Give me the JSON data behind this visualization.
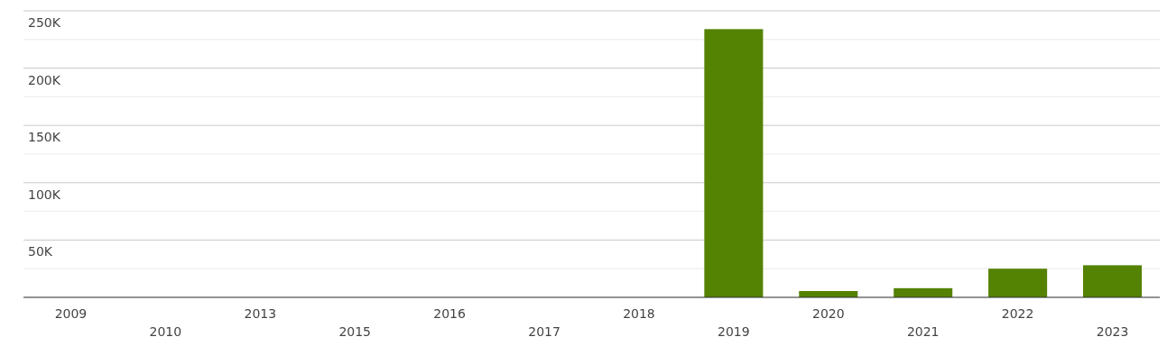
{
  "chart_data": {
    "type": "bar",
    "categories": [
      "2009",
      "2010",
      "2013",
      "2015",
      "2016",
      "2017",
      "2018",
      "2019",
      "2020",
      "2021",
      "2022",
      "2023"
    ],
    "values": [
      0,
      0,
      0,
      0,
      0,
      0,
      0,
      234000,
      5500,
      8000,
      25000,
      28000
    ],
    "color": "#548203",
    "ylim": [
      0,
      250000
    ],
    "yticks": [
      {
        "value": 0,
        "label": null
      },
      {
        "value": 25000,
        "label": null
      },
      {
        "value": 50000,
        "label": "50K"
      },
      {
        "value": 75000,
        "label": null
      },
      {
        "value": 100000,
        "label": "100K"
      },
      {
        "value": 125000,
        "label": null
      },
      {
        "value": 150000,
        "label": "150K"
      },
      {
        "value": 175000,
        "label": null
      },
      {
        "value": 200000,
        "label": "200K"
      },
      {
        "value": 225000,
        "label": null
      },
      {
        "value": 250000,
        "label": "250K"
      }
    ],
    "grid": "y"
  }
}
